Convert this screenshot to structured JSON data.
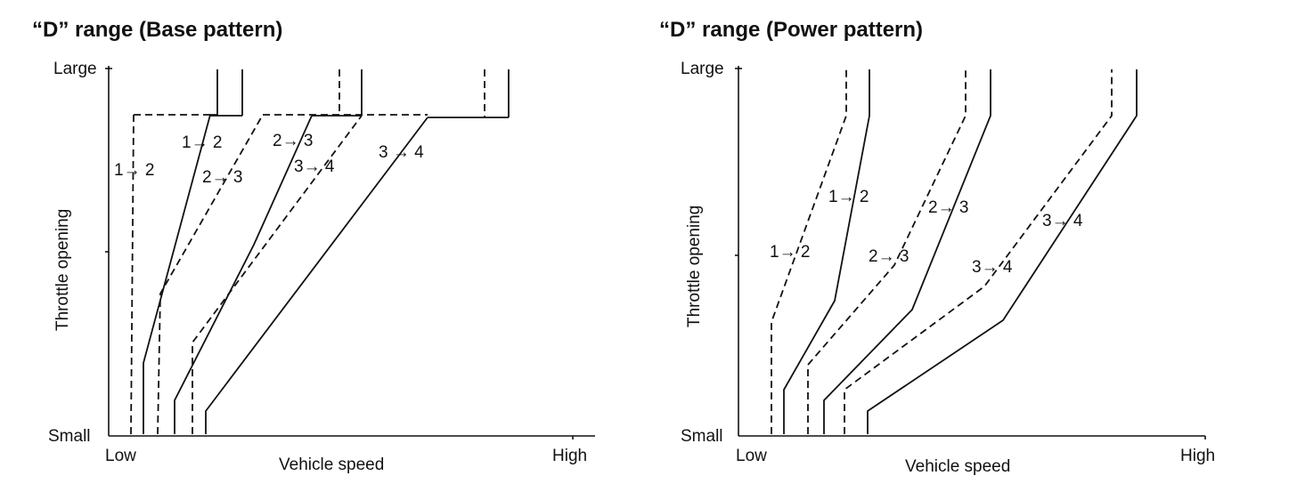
{
  "panels": [
    {
      "title": "“D” range (Base pattern)",
      "y_axis": {
        "title": "Throttle opening",
        "top_label": "Large",
        "bottom_label": "Small"
      },
      "x_axis": {
        "title": "Vehicle speed",
        "left_label": "Low",
        "right_label": "High"
      },
      "annotations": [
        "1→ 2",
        "1→ 2",
        "2→ 3",
        "2→ 3",
        "3→ 4",
        "3 → 4"
      ]
    },
    {
      "title": "“D” range (Power pattern)",
      "y_axis": {
        "title": "Throttle opening",
        "top_label": "Large",
        "bottom_label": "Small"
      },
      "x_axis": {
        "title": "Vehicle speed",
        "left_label": "Low",
        "right_label": "High"
      },
      "annotations": [
        "1→ 2",
        "1→ 2",
        "2→ 3",
        "2→ 3",
        "3→ 4",
        "3→ 4"
      ]
    }
  ]
}
